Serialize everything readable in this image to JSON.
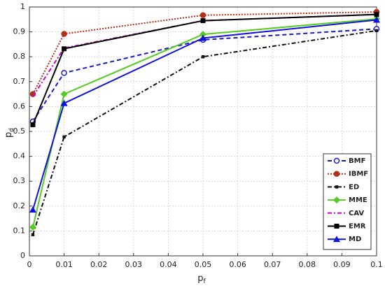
{
  "chart_data": {
    "type": "line",
    "xlabel": "p",
    "xlabel_sub": "f",
    "ylabel": "p",
    "ylabel_sub": "d",
    "xlim": [
      0,
      0.1
    ],
    "ylim": [
      0,
      1
    ],
    "xticks": [
      0,
      0.01,
      0.02,
      0.03,
      0.04,
      0.05,
      0.06,
      0.07,
      0.08,
      0.09,
      0.1
    ],
    "yticks": [
      0,
      0.1,
      0.2,
      0.3,
      0.4,
      0.5,
      0.6,
      0.7,
      0.8,
      0.9,
      1
    ],
    "grid": true,
    "legend": "right",
    "x": [
      0.001,
      0.01,
      0.05,
      0.1
    ],
    "series": [
      {
        "name": "BMF",
        "color": "#1a1acc",
        "dash": "6 4",
        "marker": "circle-open",
        "values": [
          0.54,
          0.735,
          0.868,
          0.912
        ]
      },
      {
        "name": "IBMF",
        "color": "#b0301a",
        "dash": "2 2",
        "marker": "circle",
        "values": [
          0.65,
          0.892,
          0.967,
          0.98
        ]
      },
      {
        "name": "ED",
        "color": "#111111",
        "dash": "6 3 2 3",
        "marker": "square-small",
        "values": [
          0.085,
          0.478,
          0.8,
          0.905
        ]
      },
      {
        "name": "MME",
        "color": "#55cc22",
        "dash": "",
        "marker": "diamond",
        "values": [
          0.115,
          0.65,
          0.89,
          0.952
        ]
      },
      {
        "name": "CAV",
        "color": "#cc00cc",
        "dash": "6 3 2 3",
        "marker": "none",
        "values": [
          0.64,
          0.835,
          0.945,
          0.97
        ]
      },
      {
        "name": "EMR",
        "color": "#000000",
        "dash": "",
        "marker": "square",
        "values": [
          0.527,
          0.832,
          0.945,
          0.97
        ]
      },
      {
        "name": "MD",
        "color": "#1111dd",
        "dash": "",
        "marker": "triangle",
        "values": [
          0.185,
          0.613,
          0.875,
          0.948
        ]
      }
    ]
  }
}
